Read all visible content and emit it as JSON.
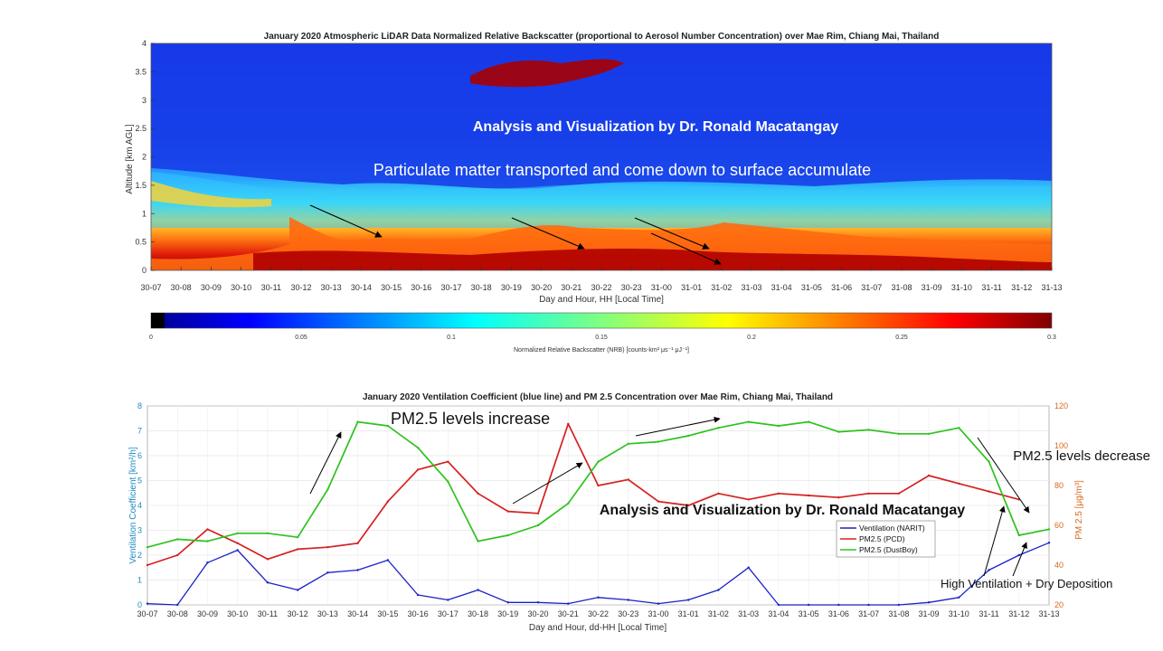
{
  "colors": {
    "ventilation": "#1a22c4",
    "pcd": "#d62020",
    "dustboy": "#2ec21e",
    "left_axis": "#1f8ac0",
    "right_axis": "#d9691e"
  },
  "time_ticks": [
    "30-07",
    "30-08",
    "30-09",
    "30-10",
    "30-11",
    "30-12",
    "30-13",
    "30-14",
    "30-15",
    "30-16",
    "30-17",
    "30-18",
    "30-19",
    "30-20",
    "30-21",
    "30-22",
    "30-23",
    "31-00",
    "31-01",
    "31-02",
    "31-03",
    "31-04",
    "31-05",
    "31-06",
    "31-07",
    "31-08",
    "31-09",
    "31-10",
    "31-11",
    "31-12",
    "31-13"
  ],
  "lidar": {
    "title": "January 2020 Atmospheric LiDAR Data Normalized Relative Backscatter (proportional to Aerosol Number Concentration) over Mae Rim, Chiang Mai, Thailand",
    "ylabel": "Altitude [km AGL]",
    "xlabel": "Day and Hour, HH [Local Time]",
    "yticks": [
      "0",
      "0.5",
      "1",
      "1.5",
      "2",
      "2.5",
      "3",
      "3.5",
      "4"
    ],
    "annotation_author": "Analysis and Visualization by Dr. Ronald Macatangay",
    "annotation_transport": "Particulate matter transported and come down to surface accumulate",
    "colorbar_label": "Normalized Relative Backscatter (NRB) [counts-km² μs⁻¹ μJ⁻¹]",
    "colorbar_ticks": [
      "0",
      "0.05",
      "0.1",
      "0.15",
      "0.2",
      "0.25",
      "0.3"
    ]
  },
  "chart_data": [
    {
      "type": "heatmap",
      "title": "January 2020 Atmospheric LiDAR Data Normalized Relative Backscatter (proportional to Aerosol Number Concentration) over Mae Rim, Chiang Mai, Thailand",
      "xlabel": "Day and Hour, HH [Local Time]",
      "ylabel": "Altitude [km AGL]",
      "ylim": [
        0,
        4
      ],
      "colorbar_range": [
        0,
        0.3
      ],
      "colormap": "jet"
    },
    {
      "type": "line",
      "title": "January 2020 Ventilation Coefficient (blue line) and PM 2.5 Concentration over Mae Rim, Chiang Mai, Thailand",
      "xlabel": "Day and Hour, dd-HH [Local Time]",
      "ylabel_left": "Ventilation Coefficient [km²/h]",
      "ylabel_right": "PM 2.5 [μg/m³]",
      "ylim_left": [
        0,
        8
      ],
      "ylim_right": [
        20,
        120
      ],
      "categories": [
        "30-07",
        "30-08",
        "30-09",
        "30-10",
        "30-11",
        "30-12",
        "30-13",
        "30-14",
        "30-15",
        "30-16",
        "30-17",
        "30-18",
        "30-19",
        "30-20",
        "30-21",
        "30-22",
        "30-23",
        "31-00",
        "31-01",
        "31-02",
        "31-03",
        "31-04",
        "31-05",
        "31-06",
        "31-07",
        "31-08",
        "31-09",
        "31-10",
        "31-11",
        "31-12",
        "31-13"
      ],
      "series": [
        {
          "name": "PM2.5 (PCD)",
          "axis": "right",
          "values": [
            40,
            45,
            58,
            51,
            43,
            48,
            49,
            51,
            72,
            88,
            92,
            76,
            67,
            66,
            111,
            80,
            83,
            72,
            70,
            76,
            73,
            76,
            75,
            74,
            76,
            76,
            85,
            81,
            77,
            73,
            null
          ]
        },
        {
          "name": "PM2.5 (DustBoy)",
          "axis": "right",
          "values": [
            49,
            53,
            52,
            56,
            56,
            54,
            78,
            112,
            110,
            99,
            82,
            52,
            55,
            60,
            71,
            92,
            101,
            102,
            105,
            109,
            112,
            110,
            112,
            107,
            108,
            106,
            106,
            109,
            92,
            55,
            58
          ]
        },
        {
          "name": "Ventilation (NARIT)",
          "axis": "left",
          "values": [
            0.05,
            0,
            1.7,
            2.2,
            0.9,
            0.6,
            1.3,
            1.4,
            1.8,
            0.4,
            0.2,
            0.6,
            0.1,
            0.1,
            0.05,
            0.3,
            0.2,
            0.05,
            0.2,
            0.6,
            1.5,
            0,
            0,
            0,
            0,
            0,
            0.1,
            0.3,
            1.4,
            2.0,
            2.5
          ]
        }
      ]
    }
  ],
  "combo": {
    "title": "January 2020 Ventilation Coefficient (blue line) and PM 2.5 Concentration over Mae Rim, Chiang Mai, Thailand",
    "ylabel_left": "Ventilation Coefficient [km²/h]",
    "ylabel_right": "PM 2.5 [μg/m³]",
    "xlabel": "Day and Hour, dd-HH [Local Time]",
    "yticks_left": [
      "0",
      "1",
      "2",
      "3",
      "4",
      "5",
      "6",
      "7",
      "8"
    ],
    "yticks_right": [
      "20",
      "40",
      "60",
      "80",
      "100",
      "120"
    ],
    "legend": [
      "Ventilation (NARIT)",
      "PM2.5 (PCD)",
      "PM2.5 (DustBoy)"
    ],
    "annotation_author": "Analysis and Visualization by Dr. Ronald Macatangay",
    "annotation_increase": "PM2.5 levels increase",
    "annotation_decrease": "PM2.5 levels decrease",
    "annotation_ventilation": "High Ventilation + Dry Deposition"
  }
}
